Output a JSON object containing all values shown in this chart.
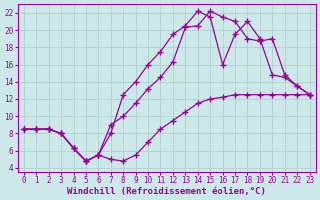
{
  "background_color": "#cce8e8",
  "grid_color": "#aacccc",
  "line_color": "#990099",
  "marker": "+",
  "markersize": 4,
  "linewidth": 0.9,
  "xlabel": "Windchill (Refroidissement éolien,°C)",
  "xlabel_fontsize": 6.5,
  "tick_fontsize": 5.5,
  "xlim": [
    -0.5,
    23.5
  ],
  "ylim": [
    3.5,
    23.0
  ],
  "yticks": [
    4,
    6,
    8,
    10,
    12,
    14,
    16,
    18,
    20,
    22
  ],
  "xticks": [
    0,
    1,
    2,
    3,
    4,
    5,
    6,
    7,
    8,
    9,
    10,
    11,
    12,
    13,
    14,
    15,
    16,
    17,
    18,
    19,
    20,
    21,
    22,
    23
  ],
  "curve1_x": [
    0,
    1,
    2,
    3,
    4,
    5,
    6,
    7,
    8,
    9,
    10,
    11,
    12,
    13,
    14,
    15,
    16,
    17,
    18,
    19,
    20,
    21,
    22,
    23
  ],
  "curve1_y": [
    8.5,
    8.5,
    8.5,
    8.0,
    6.3,
    4.8,
    5.5,
    5.0,
    4.8,
    5.5,
    7.0,
    8.5,
    9.5,
    10.5,
    11.5,
    12.0,
    12.2,
    12.5,
    12.5,
    12.5,
    12.5,
    12.5,
    12.5,
    12.5
  ],
  "curve2_x": [
    0,
    1,
    2,
    3,
    4,
    5,
    6,
    7,
    8,
    9,
    10,
    11,
    12,
    13,
    14,
    15,
    16,
    17,
    18,
    19,
    20,
    21,
    22,
    23
  ],
  "curve2_y": [
    8.5,
    8.5,
    8.5,
    8.0,
    6.3,
    4.8,
    5.5,
    8.0,
    12.5,
    14.0,
    16.0,
    17.5,
    19.5,
    20.5,
    22.2,
    21.5,
    16.0,
    19.5,
    21.0,
    19.0,
    14.8,
    14.5,
    13.5,
    12.5
  ],
  "curve3_x": [
    0,
    1,
    2,
    3,
    4,
    5,
    6,
    7,
    8,
    9,
    10,
    11,
    12,
    13,
    14,
    15,
    16,
    17,
    18,
    19,
    20,
    21,
    22,
    23
  ],
  "curve3_y": [
    8.5,
    8.5,
    8.5,
    8.0,
    6.3,
    4.8,
    5.5,
    9.0,
    10.0,
    11.5,
    13.2,
    14.5,
    16.3,
    20.3,
    20.5,
    22.2,
    21.5,
    21.0,
    19.0,
    18.7,
    19.0,
    14.8,
    13.5,
    12.5
  ]
}
